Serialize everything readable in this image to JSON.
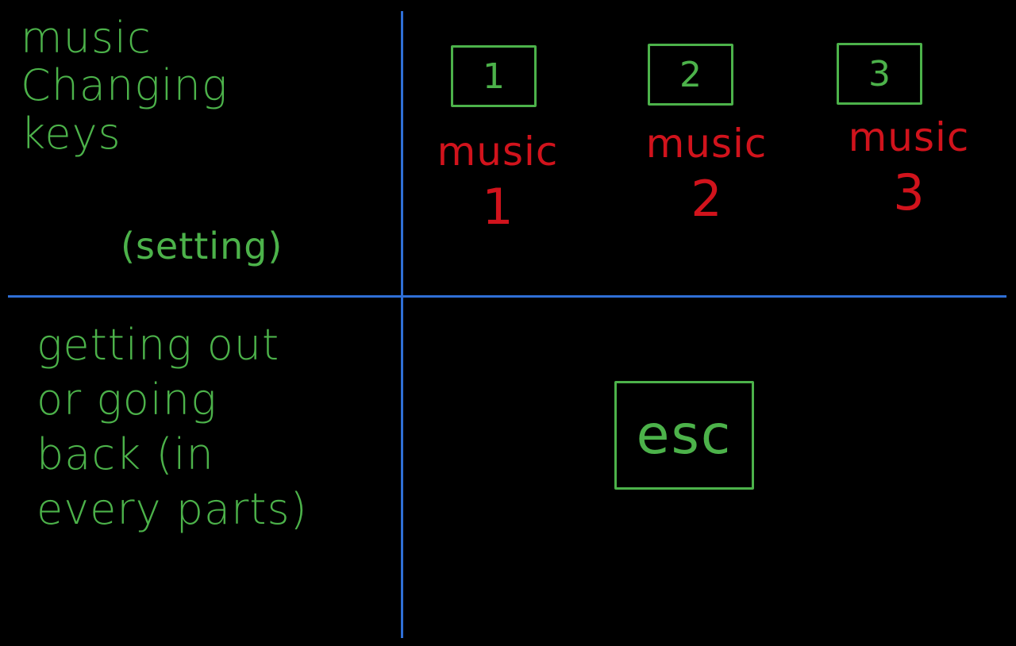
{
  "top_left": {
    "lines": [
      "music",
      "Changing",
      "keys"
    ],
    "note": "(setting)"
  },
  "keys": [
    {
      "key_label": "1",
      "caption": "music",
      "caption_number": "1"
    },
    {
      "key_label": "2",
      "caption": "music",
      "caption_number": "2"
    },
    {
      "key_label": "3",
      "caption": "music",
      "caption_number": "3"
    }
  ],
  "bottom_left": {
    "lines": [
      "getting out",
      "or going",
      "back (in",
      "every parts)"
    ]
  },
  "esc_key": {
    "label": "esc"
  },
  "colors": {
    "background": "#000000",
    "divider": "#2f6fd6",
    "green_text": "#4cb24a",
    "red_text": "#d1131c"
  }
}
